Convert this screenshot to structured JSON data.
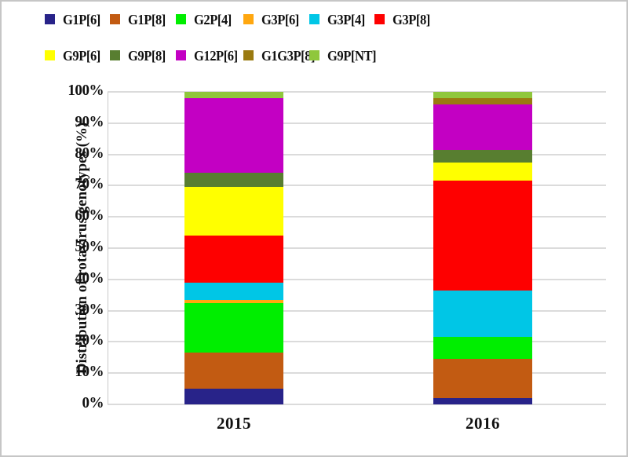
{
  "figure": {
    "y_tick_labels": [
      "0%",
      "10%",
      "20%",
      "30%",
      "40%",
      "50%",
      "60%",
      "70%",
      "80%",
      "90%",
      "100%"
    ],
    "x_tick_labels": [
      "2015",
      "2016"
    ]
  },
  "chart_data": {
    "type": "bar",
    "stacked": true,
    "title": "",
    "xlabel": "",
    "ylabel": "Distribution of rotavirus genotypes (%)",
    "ylim": [
      0,
      100
    ],
    "grid": true,
    "legend_position": "top-left, two rows",
    "categories": [
      "2015",
      "2016"
    ],
    "series": [
      {
        "name": "G1P[6]",
        "color": "#282389",
        "values": [
          5,
          2
        ]
      },
      {
        "name": "G1P[8]",
        "color": "#C25B12",
        "values": [
          11.5,
          12.5
        ]
      },
      {
        "name": "G2P[4]",
        "color": "#00EE00",
        "values": [
          16,
          7
        ]
      },
      {
        "name": "G3P[6]",
        "color": "#FFA70F",
        "values": [
          1,
          0
        ]
      },
      {
        "name": "G3P[4]",
        "color": "#00C6E6",
        "values": [
          5.5,
          15
        ]
      },
      {
        "name": "G3P[8]",
        "color": "#FE0000",
        "values": [
          15,
          35
        ]
      },
      {
        "name": "G9P[6]",
        "color": "#FFFF00",
        "values": [
          15.5,
          6
        ]
      },
      {
        "name": "G9P[8]",
        "color": "#587E30",
        "values": [
          4.5,
          4
        ]
      },
      {
        "name": "G12P[6]",
        "color": "#C300C3",
        "values": [
          24,
          14.5
        ]
      },
      {
        "name": "G1G3P[8]",
        "color": "#9A7A10",
        "values": [
          0,
          2
        ]
      },
      {
        "name": "G9P[NT]",
        "color": "#8FC73C",
        "values": [
          2,
          2
        ]
      }
    ]
  },
  "colors": {
    "gridline": "#DBDBDB",
    "axis_line": "#C9C9C9",
    "background": "#FFFFFF",
    "frame_border": "#C6C6C6",
    "text": "#111111"
  }
}
